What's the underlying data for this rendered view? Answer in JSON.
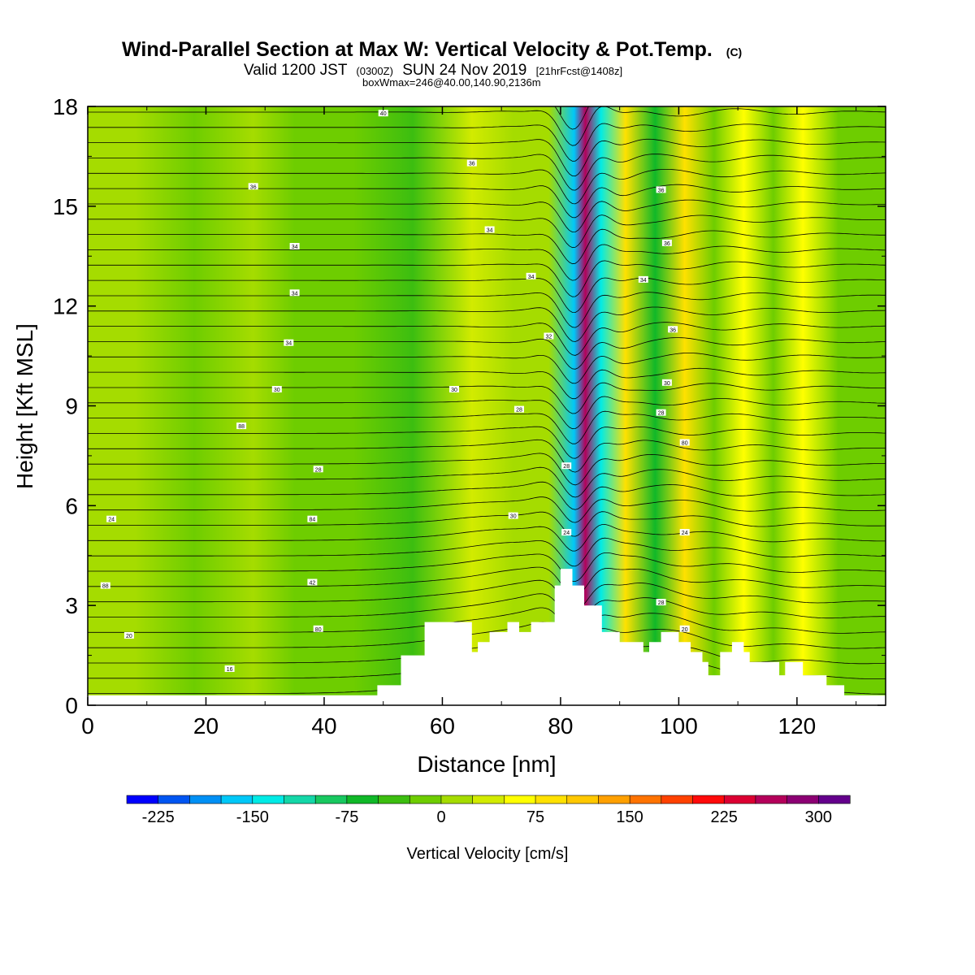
{
  "title": {
    "main": "Wind-Parallel Section at Max W: Vertical Velocity & Pot.Temp.",
    "copyright": "(C)",
    "valid_prefix": "Valid 1200 JST",
    "valid_utc": "(0300Z)",
    "valid_date": "SUN 24 Nov 2019",
    "forecast": "[21hrFcst@1408z]",
    "box_info": "boxWmax=246@40.00,140.90,2136m"
  },
  "chart_data": {
    "type": "heatmap",
    "xlabel": "Distance [nm]",
    "ylabel": "Height [Kft MSL]",
    "xlim": [
      0,
      135
    ],
    "ylim": [
      0,
      18
    ],
    "x_ticks": [
      0,
      20,
      40,
      60,
      80,
      100,
      120
    ],
    "y_ticks": [
      0,
      3,
      6,
      9,
      12,
      15,
      18
    ],
    "colorbar": {
      "label": "Vertical Velocity [cm/s]",
      "ticks": [
        -225,
        -150,
        -75,
        0,
        75,
        150,
        225,
        300
      ],
      "min": -250,
      "step": 25,
      "colors": [
        "#0000ff",
        "#0055f2",
        "#0090f5",
        "#00c8f8",
        "#00ebe6",
        "#14d7a8",
        "#18c860",
        "#10b828",
        "#3cbe10",
        "#6ecd00",
        "#a5dc00",
        "#d2eb00",
        "#ffff00",
        "#ffe100",
        "#ffc800",
        "#ffa000",
        "#ff7300",
        "#ff4100",
        "#ff0a0a",
        "#dc0032",
        "#b4005a",
        "#8c0073",
        "#64008c"
      ]
    },
    "vertical_velocity_bands": [
      {
        "x": 8,
        "value": 0
      },
      {
        "x": 18,
        "value": -25
      },
      {
        "x": 28,
        "value": 0
      },
      {
        "x": 35,
        "value": -25
      },
      {
        "x": 45,
        "value": -10
      },
      {
        "x": 55,
        "value": -30
      },
      {
        "x": 65,
        "value": 30
      },
      {
        "x": 72,
        "value": 10
      },
      {
        "x": 78,
        "value": 0
      },
      {
        "x": 82.3,
        "value": -175
      },
      {
        "x": 84.2,
        "value": 270
      },
      {
        "x": 86.8,
        "value": -140
      },
      {
        "x": 91,
        "value": 75
      },
      {
        "x": 96,
        "value": -65
      },
      {
        "x": 101,
        "value": 80
      },
      {
        "x": 106,
        "value": -25
      },
      {
        "x": 111,
        "value": 55
      },
      {
        "x": 116,
        "value": -20
      },
      {
        "x": 121,
        "value": 70
      },
      {
        "x": 127,
        "value": -20
      }
    ],
    "terrain": [
      {
        "x": 0,
        "y": 0.3
      },
      {
        "x": 49,
        "y": 0.3
      },
      {
        "x": 49,
        "y": 0.6
      },
      {
        "x": 53,
        "y": 0.6
      },
      {
        "x": 53,
        "y": 1.5
      },
      {
        "x": 57,
        "y": 1.5
      },
      {
        "x": 57,
        "y": 2.5
      },
      {
        "x": 65,
        "y": 2.5
      },
      {
        "x": 65,
        "y": 1.6
      },
      {
        "x": 66,
        "y": 1.6
      },
      {
        "x": 66,
        "y": 1.9
      },
      {
        "x": 68,
        "y": 1.9
      },
      {
        "x": 68,
        "y": 2.2
      },
      {
        "x": 71,
        "y": 2.2
      },
      {
        "x": 71,
        "y": 2.5
      },
      {
        "x": 73,
        "y": 2.5
      },
      {
        "x": 73,
        "y": 2.2
      },
      {
        "x": 75,
        "y": 2.2
      },
      {
        "x": 75,
        "y": 2.5
      },
      {
        "x": 79,
        "y": 2.5
      },
      {
        "x": 79,
        "y": 3.6
      },
      {
        "x": 80,
        "y": 3.6
      },
      {
        "x": 80,
        "y": 4.1
      },
      {
        "x": 82,
        "y": 4.1
      },
      {
        "x": 82,
        "y": 3.6
      },
      {
        "x": 84,
        "y": 3.6
      },
      {
        "x": 84,
        "y": 3.0
      },
      {
        "x": 87,
        "y": 3.0
      },
      {
        "x": 87,
        "y": 2.2
      },
      {
        "x": 90,
        "y": 2.2
      },
      {
        "x": 90,
        "y": 1.9
      },
      {
        "x": 94,
        "y": 1.9
      },
      {
        "x": 94,
        "y": 1.6
      },
      {
        "x": 95,
        "y": 1.6
      },
      {
        "x": 95,
        "y": 1.9
      },
      {
        "x": 97,
        "y": 1.9
      },
      {
        "x": 97,
        "y": 2.2
      },
      {
        "x": 100,
        "y": 2.2
      },
      {
        "x": 100,
        "y": 1.9
      },
      {
        "x": 102,
        "y": 1.9
      },
      {
        "x": 102,
        "y": 1.6
      },
      {
        "x": 104,
        "y": 1.6
      },
      {
        "x": 104,
        "y": 1.3
      },
      {
        "x": 105,
        "y": 1.3
      },
      {
        "x": 105,
        "y": 0.9
      },
      {
        "x": 107,
        "y": 0.9
      },
      {
        "x": 107,
        "y": 1.6
      },
      {
        "x": 109,
        "y": 1.6
      },
      {
        "x": 109,
        "y": 1.9
      },
      {
        "x": 111,
        "y": 1.9
      },
      {
        "x": 111,
        "y": 1.6
      },
      {
        "x": 112,
        "y": 1.6
      },
      {
        "x": 112,
        "y": 1.3
      },
      {
        "x": 117,
        "y": 1.3
      },
      {
        "x": 117,
        "y": 0.9
      },
      {
        "x": 118,
        "y": 0.9
      },
      {
        "x": 118,
        "y": 1.3
      },
      {
        "x": 121,
        "y": 1.3
      },
      {
        "x": 121,
        "y": 0.9
      },
      {
        "x": 125,
        "y": 0.9
      },
      {
        "x": 125,
        "y": 0.6
      },
      {
        "x": 128,
        "y": 0.6
      },
      {
        "x": 128,
        "y": 0.3
      },
      {
        "x": 135,
        "y": 0.3
      }
    ],
    "isentrope_count": 40,
    "isentrope_labels": [
      {
        "x": 4,
        "y": 5.6,
        "text": "24"
      },
      {
        "x": 3,
        "y": 3.6,
        "text": "88"
      },
      {
        "x": 7,
        "y": 2.1,
        "text": "20"
      },
      {
        "x": 24,
        "y": 1.1,
        "text": "16"
      },
      {
        "x": 26,
        "y": 8.4,
        "text": "88"
      },
      {
        "x": 28,
        "y": 15.6,
        "text": "36"
      },
      {
        "x": 32,
        "y": 9.5,
        "text": "30"
      },
      {
        "x": 34,
        "y": 10.9,
        "text": "34"
      },
      {
        "x": 35,
        "y": 13.8,
        "text": "34"
      },
      {
        "x": 35,
        "y": 12.4,
        "text": "34"
      },
      {
        "x": 38,
        "y": 5.6,
        "text": "84"
      },
      {
        "x": 38,
        "y": 3.7,
        "text": "42"
      },
      {
        "x": 39,
        "y": 7.1,
        "text": "28"
      },
      {
        "x": 39,
        "y": 2.3,
        "text": "80"
      },
      {
        "x": 50,
        "y": 17.8,
        "text": "40"
      },
      {
        "x": 62,
        "y": 9.5,
        "text": "30"
      },
      {
        "x": 65,
        "y": 16.3,
        "text": "36"
      },
      {
        "x": 68,
        "y": 14.3,
        "text": "34"
      },
      {
        "x": 72,
        "y": 5.7,
        "text": "30"
      },
      {
        "x": 73,
        "y": 8.9,
        "text": "28"
      },
      {
        "x": 75,
        "y": 12.9,
        "text": "34"
      },
      {
        "x": 78,
        "y": 11.1,
        "text": "32"
      },
      {
        "x": 81,
        "y": 7.2,
        "text": "28"
      },
      {
        "x": 81,
        "y": 5.2,
        "text": "24"
      },
      {
        "x": 94,
        "y": 12.8,
        "text": "34"
      },
      {
        "x": 97,
        "y": 3.1,
        "text": "28"
      },
      {
        "x": 97,
        "y": 8.8,
        "text": "28"
      },
      {
        "x": 97,
        "y": 15.5,
        "text": "36"
      },
      {
        "x": 98,
        "y": 13.9,
        "text": "36"
      },
      {
        "x": 98,
        "y": 9.7,
        "text": "30"
      },
      {
        "x": 99,
        "y": 11.3,
        "text": "36"
      },
      {
        "x": 101,
        "y": 2.3,
        "text": "20"
      },
      {
        "x": 101,
        "y": 5.2,
        "text": "24"
      },
      {
        "x": 101,
        "y": 7.9,
        "text": "80"
      }
    ]
  }
}
